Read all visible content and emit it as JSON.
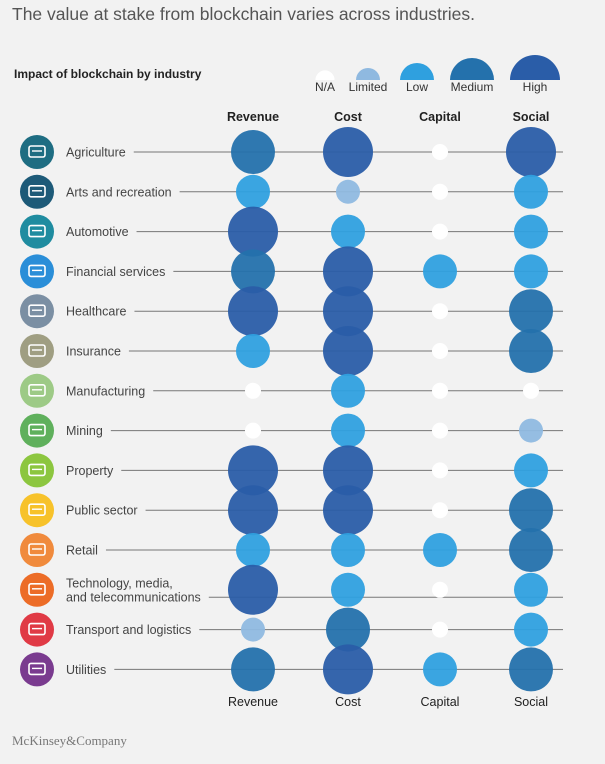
{
  "title": "The value at stake from blockchain varies across industries.",
  "logo": "McKinsey&Company",
  "chart_data": {
    "type": "bubble-matrix",
    "subtitle": "Impact of blockchain by industry",
    "columns": [
      "Revenue",
      "Cost",
      "Capital",
      "Social"
    ],
    "scale": [
      "N/A",
      "Limited",
      "Low",
      "Medium",
      "High"
    ],
    "scale_colors": {
      "N/A": "#ffffff",
      "Limited": "#8fb9e0",
      "Low": "#2fa0df",
      "Medium": "#2471ac",
      "High": "#2a5da8"
    },
    "icon_colors": [
      "#1e6d82",
      "#1d5a78",
      "#1f8ca0",
      "#2a8ed8",
      "#7b8fa3",
      "#9f9e82",
      "#9dca86",
      "#5fb05c",
      "#8cc63f",
      "#f7c22a",
      "#f08a3c",
      "#ec6c27",
      "#e03a45",
      "#7a3b8f"
    ],
    "icons": [
      "cow-icon",
      "directors-chair-icon",
      "car-chassis-icon",
      "bank-icon",
      "doctor-icon",
      "document-icon",
      "robot-arm-icon",
      "mining-helmet-icon",
      "building-icon",
      "handshake-icon",
      "cart-icon",
      "media-player-icon",
      "truck-icon",
      "lightning-icon"
    ],
    "rows": [
      {
        "industry": [
          "Agriculture"
        ],
        "values": [
          "Medium",
          "High",
          "N/A",
          "High"
        ]
      },
      {
        "industry": [
          "Arts and recreation"
        ],
        "values": [
          "Low",
          "Limited",
          "N/A",
          "Low"
        ]
      },
      {
        "industry": [
          "Automotive"
        ],
        "values": [
          "High",
          "Low",
          "N/A",
          "Low"
        ]
      },
      {
        "industry": [
          "Financial services"
        ],
        "values": [
          "Medium",
          "High",
          "Low",
          "Low"
        ]
      },
      {
        "industry": [
          "Healthcare"
        ],
        "values": [
          "High",
          "High",
          "N/A",
          "Medium"
        ]
      },
      {
        "industry": [
          "Insurance"
        ],
        "values": [
          "Low",
          "High",
          "N/A",
          "Medium"
        ]
      },
      {
        "industry": [
          "Manufacturing"
        ],
        "values": [
          "N/A",
          "Low",
          "N/A",
          "N/A"
        ]
      },
      {
        "industry": [
          "Mining"
        ],
        "values": [
          "N/A",
          "Low",
          "N/A",
          "Limited"
        ]
      },
      {
        "industry": [
          "Property"
        ],
        "values": [
          "High",
          "High",
          "N/A",
          "Low"
        ]
      },
      {
        "industry": [
          "Public sector"
        ],
        "values": [
          "High",
          "High",
          "N/A",
          "Medium"
        ]
      },
      {
        "industry": [
          "Retail"
        ],
        "values": [
          "Low",
          "Low",
          "Low",
          "Medium"
        ]
      },
      {
        "industry": [
          "Technology, media,",
          "and telecommunications"
        ],
        "values": [
          "High",
          "Low",
          "N/A",
          "Low"
        ]
      },
      {
        "industry": [
          "Transport and logistics"
        ],
        "values": [
          "Limited",
          "Medium",
          "N/A",
          "Low"
        ]
      },
      {
        "industry": [
          "Utilities"
        ],
        "values": [
          "Medium",
          "High",
          "Low",
          "Medium"
        ]
      }
    ]
  }
}
